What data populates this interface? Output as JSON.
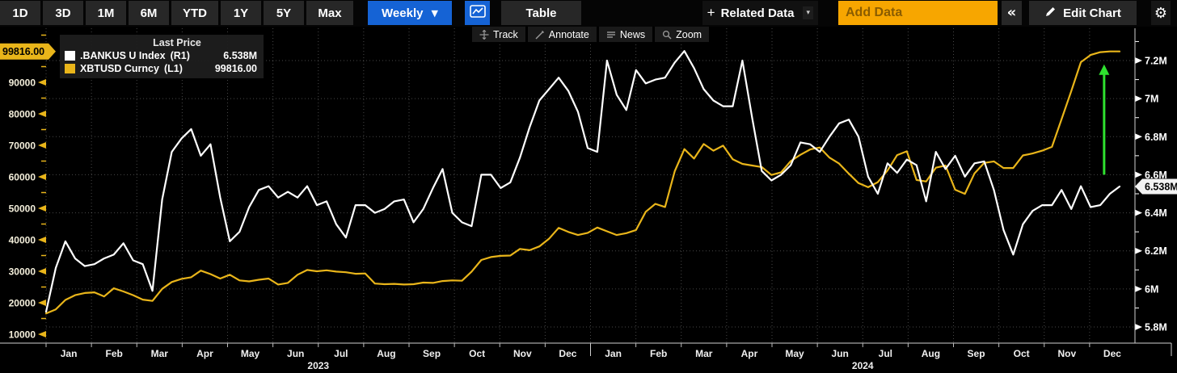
{
  "toolbar": {
    "periods": [
      "1D",
      "3D",
      "1M",
      "6M",
      "YTD",
      "1Y",
      "5Y",
      "Max"
    ],
    "frequency": "Weekly",
    "table": "Table",
    "related_data": "Related Data",
    "add_data_placeholder": "Add Data",
    "collapse": "«",
    "edit_chart": "Edit Chart"
  },
  "chart_toolbar": {
    "buttons": [
      {
        "label": "Track"
      },
      {
        "label": "Annotate"
      },
      {
        "label": "News"
      },
      {
        "label": "Zoom"
      }
    ]
  },
  "legend": {
    "header": "Last Price",
    "items": [
      {
        "label": ".BANKUS U Index",
        "axis": "(R1)",
        "value": "6.538M",
        "color": "#ffffff"
      },
      {
        "label": "XBTUSD Curncy",
        "axis": "(L1)",
        "value": "99816.00",
        "color": "#e9b51a"
      }
    ]
  },
  "chart_data": {
    "type": "line",
    "frequency": "weekly",
    "grid": "dotted",
    "x": {
      "months": [
        "Jan",
        "Feb",
        "Mar",
        "Apr",
        "May",
        "Jun",
        "Jul",
        "Aug",
        "Sep",
        "Oct",
        "Nov",
        "Dec",
        "Jan",
        "Feb",
        "Mar",
        "Apr",
        "May",
        "Jun",
        "Jul",
        "Aug",
        "Sep",
        "Oct",
        "Nov",
        "Dec"
      ],
      "years": [
        "2023",
        "2024"
      ]
    },
    "left_axis": {
      "color": "#e9b51a",
      "ticks": [
        10000,
        20000,
        30000,
        40000,
        50000,
        60000,
        70000,
        80000,
        90000
      ],
      "last_price_label": "99816.00",
      "last_price_value": 99816
    },
    "right_axis": {
      "color": "#ffffff",
      "ticks": [
        {
          "value": 5.8,
          "label": "5.8M"
        },
        {
          "value": 6.0,
          "label": "6M"
        },
        {
          "value": 6.2,
          "label": "6.2M"
        },
        {
          "value": 6.4,
          "label": "6.4M"
        },
        {
          "value": 6.6,
          "label": "6.6M"
        },
        {
          "value": 6.8,
          "label": "6.8M"
        },
        {
          "value": 7.0,
          "label": "7M"
        },
        {
          "value": 7.2,
          "label": "7.2M"
        }
      ],
      "last_price_label": "6.538M",
      "last_price_value": 6.538
    },
    "series": [
      {
        "name": "XBTUSD Curncy",
        "axis": "L1",
        "color": "#e9b51a",
        "values": [
          16600,
          17900,
          20900,
          22400,
          23100,
          23300,
          22000,
          24600,
          23600,
          22400,
          21000,
          20600,
          24400,
          26600,
          27600,
          28100,
          30200,
          29100,
          27700,
          28900,
          27100,
          26800,
          27300,
          27700,
          25800,
          26300,
          28900,
          30400,
          30000,
          30300,
          29900,
          29700,
          29200,
          29300,
          26100,
          25900,
          26000,
          25800,
          25900,
          26400,
          26300,
          26900,
          27100,
          27000,
          29900,
          33600,
          34500,
          34900,
          35000,
          37100,
          36700,
          37900,
          40300,
          43800,
          42500,
          41500,
          42200,
          43900,
          42700,
          41500,
          42100,
          43100,
          48900,
          51400,
          50400,
          61800,
          68800,
          65800,
          70400,
          68300,
          69900,
          65600,
          64100,
          63600,
          63100,
          60600,
          61400,
          65000,
          67000,
          68700,
          69300,
          66100,
          64200,
          61000,
          58000,
          56700,
          58300,
          62000,
          66900,
          68100,
          59000,
          58500,
          62900,
          63600,
          55900,
          54600,
          61100,
          64400,
          64900,
          62800,
          62800,
          66800,
          67400,
          68300,
          69500,
          78300,
          87200,
          96400,
          98700,
          99600,
          99816,
          99816
        ]
      },
      {
        "name": ".BANKUS U Index",
        "axis": "R1",
        "color": "#ffffff",
        "values": [
          5.88,
          6.11,
          6.25,
          6.16,
          6.12,
          6.13,
          6.16,
          6.18,
          6.24,
          6.15,
          6.13,
          5.99,
          6.47,
          6.72,
          6.79,
          6.84,
          6.7,
          6.76,
          6.48,
          6.25,
          6.3,
          6.43,
          6.52,
          6.54,
          6.48,
          6.51,
          6.48,
          6.54,
          6.44,
          6.46,
          6.34,
          6.27,
          6.44,
          6.44,
          6.4,
          6.42,
          6.46,
          6.47,
          6.35,
          6.42,
          6.53,
          6.63,
          6.4,
          6.35,
          6.33,
          6.6,
          6.6,
          6.53,
          6.56,
          6.69,
          6.85,
          6.99,
          7.05,
          7.11,
          7.04,
          6.93,
          6.74,
          6.72,
          7.2,
          7.02,
          6.94,
          7.15,
          7.08,
          7.1,
          7.11,
          7.19,
          7.25,
          7.16,
          7.05,
          6.99,
          6.96,
          6.96,
          7.2,
          6.9,
          6.62,
          6.57,
          6.6,
          6.65,
          6.77,
          6.76,
          6.72,
          6.8,
          6.87,
          6.89,
          6.8,
          6.59,
          6.5,
          6.66,
          6.61,
          6.68,
          6.65,
          6.46,
          6.72,
          6.63,
          6.7,
          6.59,
          6.66,
          6.67,
          6.52,
          6.31,
          6.18,
          6.34,
          6.41,
          6.44,
          6.44,
          6.52,
          6.42,
          6.54,
          6.43,
          6.44,
          6.5,
          6.538
        ]
      }
    ],
    "annotations": [
      {
        "type": "arrow",
        "direction": "up",
        "color": "#2fe12f",
        "axis": "R1",
        "x_index": 109.4,
        "from": 6.6,
        "to": 7.18
      }
    ]
  }
}
